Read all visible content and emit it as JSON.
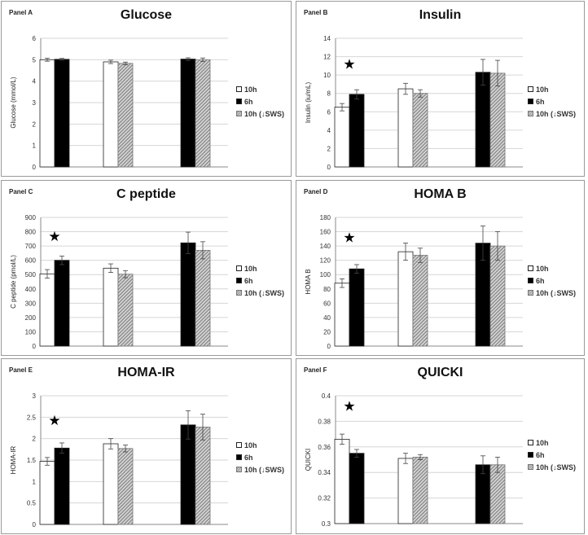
{
  "colors": {
    "s0": "#ffffff",
    "s1": "#000000",
    "s2": "#bcbcbc",
    "border": "#222222",
    "grid": "#d6d6d6"
  },
  "star_glyph": "★",
  "legend": [
    "10h",
    "6h",
    "10h (↓SWS)"
  ],
  "chart_data": [
    {
      "panel": "Panel A",
      "type": "bar",
      "title": "Glucose",
      "ylabel": "Glucose (mmol/L)",
      "ylim": [
        0,
        6
      ],
      "ticks": [
        "0",
        "1",
        "2",
        "3",
        "4",
        "5",
        "6"
      ],
      "groups": [
        [
          {
            "series": 0,
            "value": 5.0,
            "err": 0.07
          },
          {
            "series": 1,
            "value": 5.02,
            "err": 0.04
          }
        ],
        [
          {
            "series": 0,
            "value": 4.9,
            "err": 0.08
          },
          {
            "series": 2,
            "value": 4.83,
            "err": 0.06
          }
        ],
        [
          {
            "series": 1,
            "value": 5.03,
            "err": 0.06
          },
          {
            "series": 2,
            "value": 5.0,
            "err": 0.08
          }
        ]
      ],
      "star": null
    },
    {
      "panel": "Panel B",
      "type": "bar",
      "title": "Insulin",
      "ylabel": "Insulin (iu/mL)",
      "ylim": [
        0,
        14
      ],
      "ticks": [
        "0",
        "2",
        "4",
        "6",
        "8",
        "10",
        "12",
        "14"
      ],
      "groups": [
        [
          {
            "series": 0,
            "value": 6.5,
            "err": 0.4
          },
          {
            "series": 1,
            "value": 7.9,
            "err": 0.5
          }
        ],
        [
          {
            "series": 0,
            "value": 8.5,
            "err": 0.6
          },
          {
            "series": 2,
            "value": 8.0,
            "err": 0.4
          }
        ],
        [
          {
            "series": 1,
            "value": 10.3,
            "err": 1.4
          },
          {
            "series": 2,
            "value": 10.2,
            "err": 1.4
          }
        ]
      ],
      "star": {
        "group": 0,
        "value": 11.2
      }
    },
    {
      "panel": "Panel C",
      "type": "bar",
      "title": "C peptide",
      "ylabel": "C peptide (pmol/L)",
      "ylim": [
        0,
        900
      ],
      "ticks": [
        "0",
        "100",
        "200",
        "300",
        "400",
        "500",
        "600",
        "700",
        "800",
        "900"
      ],
      "groups": [
        [
          {
            "series": 0,
            "value": 505,
            "err": 30
          },
          {
            "series": 1,
            "value": 600,
            "err": 30
          }
        ],
        [
          {
            "series": 0,
            "value": 545,
            "err": 30
          },
          {
            "series": 2,
            "value": 503,
            "err": 25
          }
        ],
        [
          {
            "series": 1,
            "value": 722,
            "err": 75
          },
          {
            "series": 2,
            "value": 670,
            "err": 60
          }
        ]
      ],
      "star": {
        "group": 0,
        "value": 770
      }
    },
    {
      "panel": "Panel D",
      "type": "bar",
      "title": "HOMA B",
      "ylabel": "HOMA B",
      "ylim": [
        0,
        180
      ],
      "ticks": [
        "0",
        "20",
        "40",
        "60",
        "80",
        "100",
        "120",
        "140",
        "160",
        "180"
      ],
      "groups": [
        [
          {
            "series": 0,
            "value": 88,
            "err": 6
          },
          {
            "series": 1,
            "value": 108,
            "err": 6
          }
        ],
        [
          {
            "series": 0,
            "value": 132,
            "err": 12
          },
          {
            "series": 2,
            "value": 127,
            "err": 10
          }
        ],
        [
          {
            "series": 1,
            "value": 144,
            "err": 24
          },
          {
            "series": 2,
            "value": 140,
            "err": 20
          }
        ]
      ],
      "star": {
        "group": 0,
        "value": 152
      }
    },
    {
      "panel": "Panel E",
      "type": "bar",
      "title": "HOMA-IR",
      "ylabel": "HOMA-IR",
      "ylim": [
        0,
        3
      ],
      "ticks": [
        "0",
        "0.5",
        "1",
        "1.5",
        "2",
        "2.5",
        "3"
      ],
      "groups": [
        [
          {
            "series": 0,
            "value": 1.47,
            "err": 0.09
          },
          {
            "series": 1,
            "value": 1.78,
            "err": 0.12
          }
        ],
        [
          {
            "series": 0,
            "value": 1.88,
            "err": 0.12
          },
          {
            "series": 2,
            "value": 1.77,
            "err": 0.08
          }
        ],
        [
          {
            "series": 1,
            "value": 2.32,
            "err": 0.33
          },
          {
            "series": 2,
            "value": 2.27,
            "err": 0.3
          }
        ]
      ],
      "star": {
        "group": 0,
        "value": 2.43
      }
    },
    {
      "panel": "Panel F",
      "type": "bar",
      "title": "QUICKI",
      "ylabel": "QUICKI",
      "ylim": [
        0.3,
        0.4
      ],
      "ticks": [
        "0.3",
        "0.32",
        "0.34",
        "0.36",
        "0.38",
        "0.4"
      ],
      "groups": [
        [
          {
            "series": 0,
            "value": 0.366,
            "err": 0.004
          },
          {
            "series": 1,
            "value": 0.355,
            "err": 0.003
          }
        ],
        [
          {
            "series": 0,
            "value": 0.351,
            "err": 0.004
          },
          {
            "series": 2,
            "value": 0.352,
            "err": 0.002
          }
        ],
        [
          {
            "series": 1,
            "value": 0.346,
            "err": 0.007
          },
          {
            "series": 2,
            "value": 0.346,
            "err": 0.006
          }
        ]
      ],
      "star": {
        "group": 0,
        "value": 0.392
      }
    }
  ]
}
